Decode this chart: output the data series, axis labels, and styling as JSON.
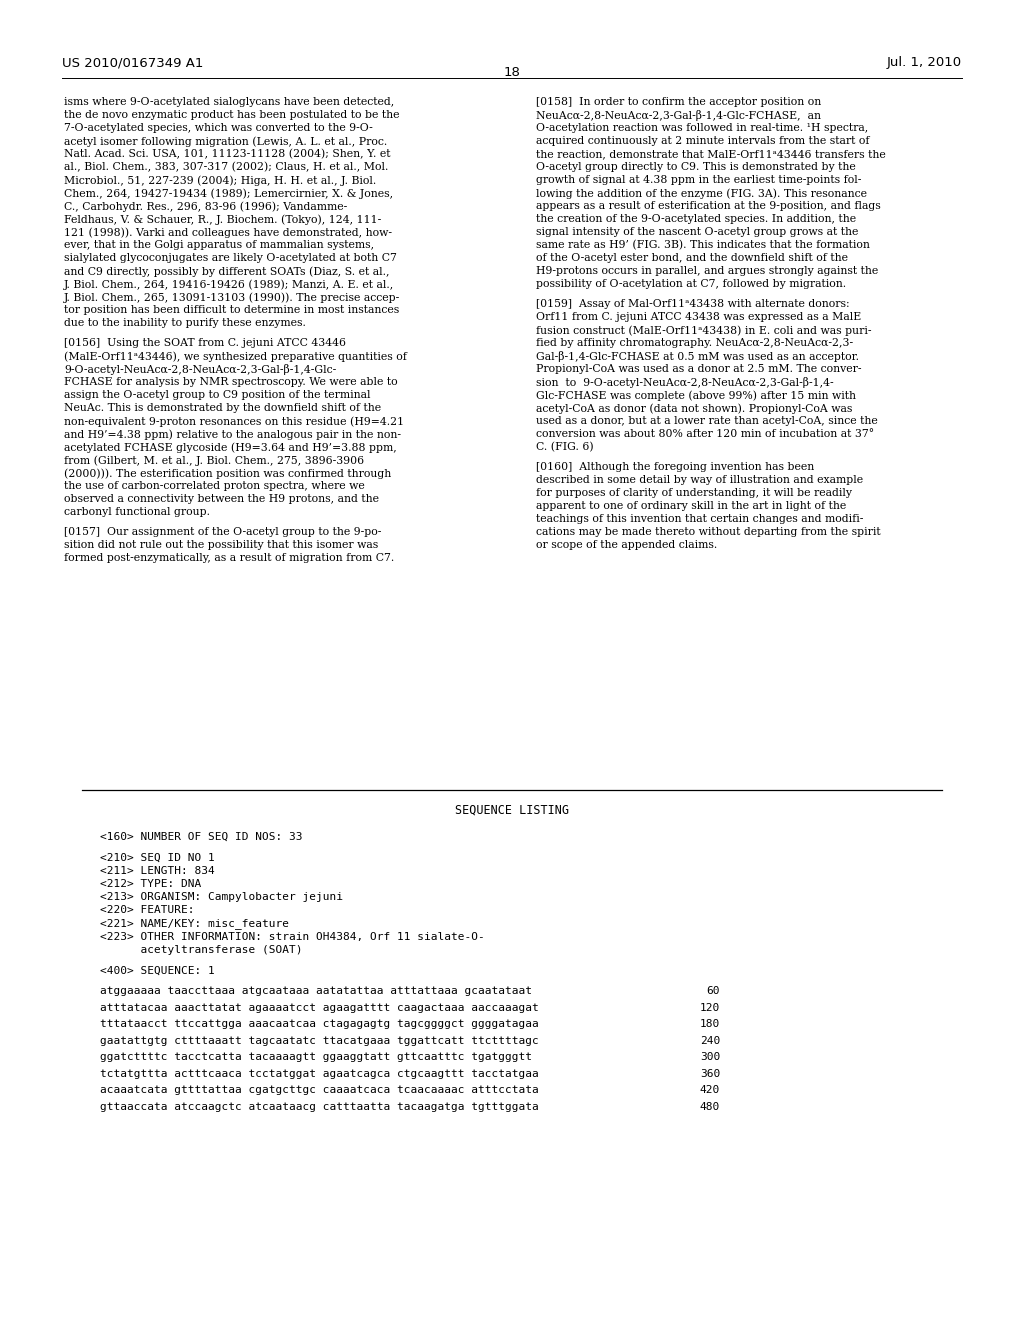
{
  "page_number": "18",
  "header_left": "US 2010/0167349 A1",
  "header_right": "Jul. 1, 2010",
  "background_color": "#ffffff",
  "text_color": "#000000",
  "left_column": [
    "isms where 9-O-acetylated sialoglycans have been detected,",
    "the de novo enzymatic product has been postulated to be the",
    "7-O-acetylated species, which was converted to the 9-O-",
    "acetyl isomer following migration (Lewis, A. L. et al., Proc.",
    "Natl. Acad. Sci. USA, 101, 11123-11128 (2004); Shen, Y. et",
    "al., Biol. Chem., 383, 307-317 (2002); Claus, H. et al., Mol.",
    "Microbiol., 51, 227-239 (2004); Higa, H. H. et al., J. Biol.",
    "Chem., 264, 19427-19434 (1989); Lemercirnier, X. & Jones,",
    "C., Carbohydr. Res., 296, 83-96 (1996); Vandamme-",
    "Feldhaus, V. & Schauer, R., J. Biochem. (Tokyo), 124, 111-",
    "121 (1998)). Varki and colleagues have demonstrated, how-",
    "ever, that in the Golgi apparatus of mammalian systems,",
    "sialylated glycoconjugates are likely O-acetylated at both C7",
    "and C9 directly, possibly by different SOATs (Diaz, S. et al.,",
    "J. Biol. Chem., 264, 19416-19426 (1989); Manzi, A. E. et al.,",
    "J. Biol. Chem., 265, 13091-13103 (1990)). The precise accep-",
    "tor position has been difficult to determine in most instances",
    "due to the inability to purify these enzymes.",
    "",
    "[0156]  Using the SOAT from C. jejuni ATCC 43446",
    "(MalE-Orf11ᵃ43446), we synthesized preparative quantities of",
    "9-O-acetyl-NeuAcα-2,8-NeuAcα-2,3-Gal-β-1,4-Glc-",
    "FCHASE for analysis by NMR spectroscopy. We were able to",
    "assign the O-acetyl group to C9 position of the terminal",
    "NeuAc. This is demonstrated by the downfield shift of the",
    "non-equivalent 9-proton resonances on this residue (H9=4.21",
    "and H9’=4.38 ppm) relative to the analogous pair in the non-",
    "acetylated FCHASE glycoside (H9=3.64 and H9’=3.88 ppm,",
    "from (Gilbert, M. et al., J. Biol. Chem., 275, 3896-3906",
    "(2000))). The esterification position was confirmed through",
    "the use of carbon-correlated proton spectra, where we",
    "observed a connectivity between the H9 protons, and the",
    "carbonyl functional group.",
    "",
    "[0157]  Our assignment of the O-acetyl group to the 9-po-",
    "sition did not rule out the possibility that this isomer was",
    "formed post-enzymatically, as a result of migration from C7."
  ],
  "right_column": [
    "[0158]  In order to confirm the acceptor position on",
    "NeuAcα-2,8-NeuAcα-2,3-Gal-β-1,4-Glc-FCHASE,  an",
    "O-acetylation reaction was followed in real-time. ¹H spectra,",
    "acquired continuously at 2 minute intervals from the start of",
    "the reaction, demonstrate that MalE-Orf11ᵃ43446 transfers the",
    "O-acetyl group directly to C9. This is demonstrated by the",
    "growth of signal at 4.38 ppm in the earliest time-points fol-",
    "lowing the addition of the enzyme (FIG. 3A). This resonance",
    "appears as a result of esterification at the 9-position, and flags",
    "the creation of the 9-O-acetylated species. In addition, the",
    "signal intensity of the nascent O-acetyl group grows at the",
    "same rate as H9’ (FIG. 3B). This indicates that the formation",
    "of the O-acetyl ester bond, and the downfield shift of the",
    "H9-protons occurs in parallel, and argues strongly against the",
    "possibility of O-acetylation at C7, followed by migration.",
    "",
    "[0159]  Assay of Mal-Orf11ᵃ43438 with alternate donors:",
    "Orf11 from C. jejuni ATCC 43438 was expressed as a MalE",
    "fusion construct (MalE-Orf11ᵃ43438) in E. coli and was puri-",
    "fied by affinity chromatography. NeuAcα-2,8-NeuAcα-2,3-",
    "Gal-β-1,4-Glc-FCHASE at 0.5 mM was used as an acceptor.",
    "Propionyl-CoA was used as a donor at 2.5 mM. The conver-",
    "sion  to  9-O-acetyl-NeuAcα-2,8-NeuAcα-2,3-Gal-β-1,4-",
    "Glc-FCHASE was complete (above 99%) after 15 min with",
    "acetyl-CoA as donor (data not shown). Propionyl-CoA was",
    "used as a donor, but at a lower rate than acetyl-CoA, since the",
    "conversion was about 80% after 120 min of incubation at 37°",
    "C. (FIG. 6)",
    "",
    "[0160]  Although the foregoing invention has been",
    "described in some detail by way of illustration and example",
    "for purposes of clarity of understanding, it will be readily",
    "apparent to one of ordinary skill in the art in light of the",
    "teachings of this invention that certain changes and modifi-",
    "cations may be made thereto without departing from the spirit",
    "or scope of the appended claims."
  ],
  "sequence_section_title": "SEQUENCE LISTING",
  "sequence_meta": [
    "<160> NUMBER OF SEQ ID NOS: 33",
    "",
    "<210> SEQ ID NO 1",
    "<211> LENGTH: 834",
    "<212> TYPE: DNA",
    "<213> ORGANISM: Campylobacter jejuni",
    "<220> FEATURE:",
    "<221> NAME/KEY: misc_feature",
    "<223> OTHER INFORMATION: strain OH4384, Orf 11 sialate-O-",
    "      acetyltransferase (SOAT)",
    "",
    "<400> SEQUENCE: 1"
  ],
  "sequence_data": [
    [
      "atggaaaaa taaccttaaa atgcaataaa aatatattaa atttattaaa gcaatataat",
      "60"
    ],
    [
      "atttatacaa aaacttatat agaaaatcct agaagatttt caagactaaa aaccaaagat",
      "120"
    ],
    [
      "tttataacct ttccattgga aaacaatcaa ctagagagtg tagcggggct ggggatagaa",
      "180"
    ],
    [
      "gaatattgtg cttttaaatt tagcaatatc ttacatgaaa tggattcatt ttcttttagc",
      "240"
    ],
    [
      "ggatcttttc tacctcatta tacaaaagtt ggaaggtatt gttcaatttc tgatgggtt",
      "300"
    ],
    [
      "tctatgttta actttcaaca tcctatggat agaatcagca ctgcaagttt tacctatgaa",
      "360"
    ],
    [
      "acaaatcata gttttattaa cgatgcttgc caaaatcaca tcaacaaaac atttcctata",
      "420"
    ],
    [
      "gttaaccata atccaagctc atcaataacg catttaatta tacaagatga tgtttggata",
      "480"
    ]
  ]
}
